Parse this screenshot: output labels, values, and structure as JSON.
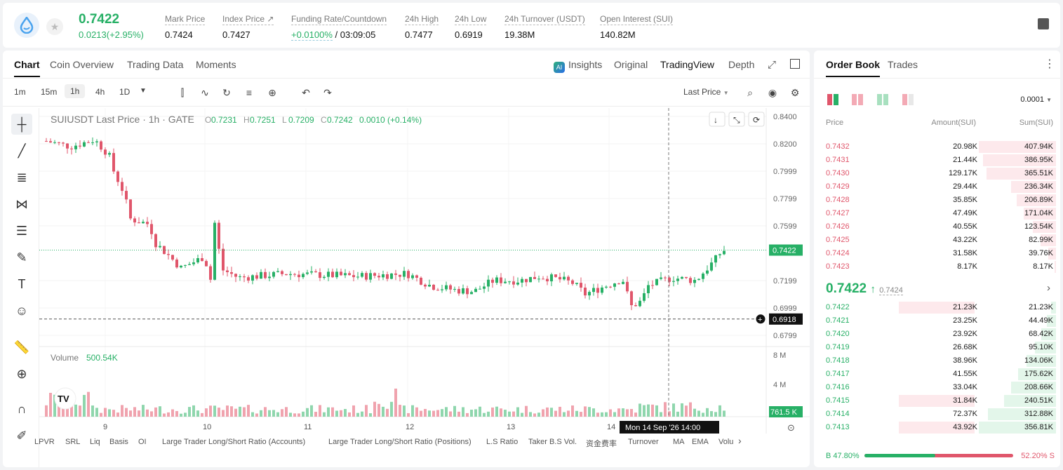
{
  "header": {
    "price": "0.7422",
    "change": "0.0213(+2.95%)",
    "stats": [
      {
        "label": "Mark Price",
        "value": "0.7424"
      },
      {
        "label": "Index Price ↗",
        "value": "0.7427"
      },
      {
        "label": "Funding Rate/Countdown",
        "value_green": "+0.0100%",
        "value": " / 03:09:05"
      },
      {
        "label": "24h High",
        "value": "0.7477"
      },
      {
        "label": "24h Low",
        "value": "0.6919"
      },
      {
        "label": "24h Turnover (USDT)",
        "value": "19.38M"
      },
      {
        "label": "Open Interest (SUI)",
        "value": "140.82M"
      }
    ]
  },
  "chart_tabs": [
    "Chart",
    "Coin Overview",
    "Trading Data",
    "Moments"
  ],
  "view_tabs": {
    "insights": "Insights",
    "original": "Original",
    "tradingview": "TradingView",
    "depth": "Depth"
  },
  "timeframes": [
    "1m",
    "15m",
    "1h",
    "4h",
    "1D"
  ],
  "price_type": "Last Price",
  "legend": {
    "symbol": "SUIUSDT Last Price · 1h · GATE",
    "o_label": "O",
    "o": "0.7231",
    "h_label": "H",
    "h": "0.7251",
    "l_label": "L",
    "l": "0.7209",
    "c_label": "C",
    "c": "0.7242",
    "chg": "0.0010 (+0.14%)"
  },
  "volume_label": "Volume",
  "volume_value": "500.54K",
  "price_axis": [
    "0.8400",
    "0.8200",
    "0.7999",
    "0.7799",
    "0.7599",
    "0.7199",
    "0.6999",
    "0.6799"
  ],
  "last_price_tag": "0.7422",
  "crosshair_price_tag": "0.6918",
  "volume_axis": [
    "8 M",
    "4 M"
  ],
  "volume_tag": "761.5 K",
  "date_axis": [
    "9",
    "10",
    "11",
    "12",
    "13",
    "14"
  ],
  "crosshair_date": "Mon 14 Sep '26   14:00",
  "indicators": [
    "LPVR",
    "SRL",
    "Liq",
    "Basis",
    "OI",
    "Large Trader Long/Short Ratio (Accounts)",
    "Large Trader Long/Short Ratio (Positions)",
    "L.S Ratio",
    "Taker B.S Vol.",
    "资金费率",
    "Turnover",
    "MA",
    "EMA",
    "Volu"
  ],
  "chart_data": {
    "type": "candlestick",
    "symbol": "SUIUSDT",
    "interval": "1h",
    "ylim": [
      0.67,
      0.845
    ],
    "candles_approx_count": 162,
    "key_points": [
      {
        "time": "start",
        "price": 0.822
      },
      {
        "time": "Sep 10 early",
        "price": 0.795
      },
      {
        "time": "Sep 10 late",
        "price": 0.763
      },
      {
        "time": "Sep 11",
        "price": 0.733
      },
      {
        "time": "Sep 11 late",
        "price": 0.732
      },
      {
        "time": "Sep 11 22:00 spike high",
        "price": 0.764
      },
      {
        "time": "Sep 12",
        "price": 0.724
      },
      {
        "time": "Sep 13",
        "price": 0.725
      },
      {
        "time": "Sep 13 late",
        "price": 0.711
      },
      {
        "time": "Sep 14 low",
        "price": 0.6919
      },
      {
        "time": "Sep 14 end",
        "price": 0.7422
      }
    ]
  },
  "orderbook": {
    "tabs": [
      "Order Book",
      "Trades"
    ],
    "precision": "0.0001",
    "headers": [
      "Price",
      "Amount(SUI)",
      "Sum(SUI)"
    ],
    "asks": [
      {
        "price": "0.7432",
        "amount": "20.98K",
        "sum": "407.94K",
        "depth": 1.0
      },
      {
        "price": "0.7431",
        "amount": "21.44K",
        "sum": "386.95K",
        "depth": 0.95
      },
      {
        "price": "0.7430",
        "amount": "129.17K",
        "sum": "365.51K",
        "depth": 0.9
      },
      {
        "price": "0.7429",
        "amount": "29.44K",
        "sum": "236.34K",
        "depth": 0.58
      },
      {
        "price": "0.7428",
        "amount": "35.85K",
        "sum": "206.89K",
        "depth": 0.51
      },
      {
        "price": "0.7427",
        "amount": "47.49K",
        "sum": "171.04K",
        "depth": 0.42
      },
      {
        "price": "0.7426",
        "amount": "40.55K",
        "sum": "123.54K",
        "depth": 0.3
      },
      {
        "price": "0.7425",
        "amount": "43.22K",
        "sum": "82.99K",
        "depth": 0.2
      },
      {
        "price": "0.7424",
        "amount": "31.58K",
        "sum": "39.76K",
        "depth": 0.1
      },
      {
        "price": "0.7423",
        "amount": "8.17K",
        "sum": "8.17K",
        "depth": 0.02
      }
    ],
    "mid_price": "0.7422",
    "mid_arrow": "↑",
    "mid_mark": "0.7424",
    "bids": [
      {
        "price": "0.7422",
        "amount": "21.23K",
        "sum": "21.23K",
        "depth": 0.06,
        "hl": true
      },
      {
        "price": "0.7421",
        "amount": "23.25K",
        "sum": "44.49K",
        "depth": 0.12,
        "hl": false
      },
      {
        "price": "0.7420",
        "amount": "23.92K",
        "sum": "68.42K",
        "depth": 0.19,
        "hl": false
      },
      {
        "price": "0.7419",
        "amount": "26.68K",
        "sum": "95.10K",
        "depth": 0.27,
        "hl": false
      },
      {
        "price": "0.7418",
        "amount": "38.96K",
        "sum": "134.06K",
        "depth": 0.38,
        "hl": false
      },
      {
        "price": "0.7417",
        "amount": "41.55K",
        "sum": "175.62K",
        "depth": 0.49,
        "hl": false
      },
      {
        "price": "0.7416",
        "amount": "33.04K",
        "sum": "208.66K",
        "depth": 0.58,
        "hl": false
      },
      {
        "price": "0.7415",
        "amount": "31.84K",
        "sum": "240.51K",
        "depth": 0.67,
        "hl": true
      },
      {
        "price": "0.7414",
        "amount": "72.37K",
        "sum": "312.88K",
        "depth": 0.88,
        "hl": false
      },
      {
        "price": "0.7413",
        "amount": "43.92K",
        "sum": "356.81K",
        "depth": 1.0,
        "hl": true
      }
    ],
    "buy_pct": "B 47.80%",
    "sell_pct": "52.20% S",
    "buy_ratio": 0.478
  },
  "colors": {
    "up": "#27b066",
    "down": "#e0566b",
    "up_bg": "#e3f6ea",
    "down_bg": "#fde9ec"
  }
}
